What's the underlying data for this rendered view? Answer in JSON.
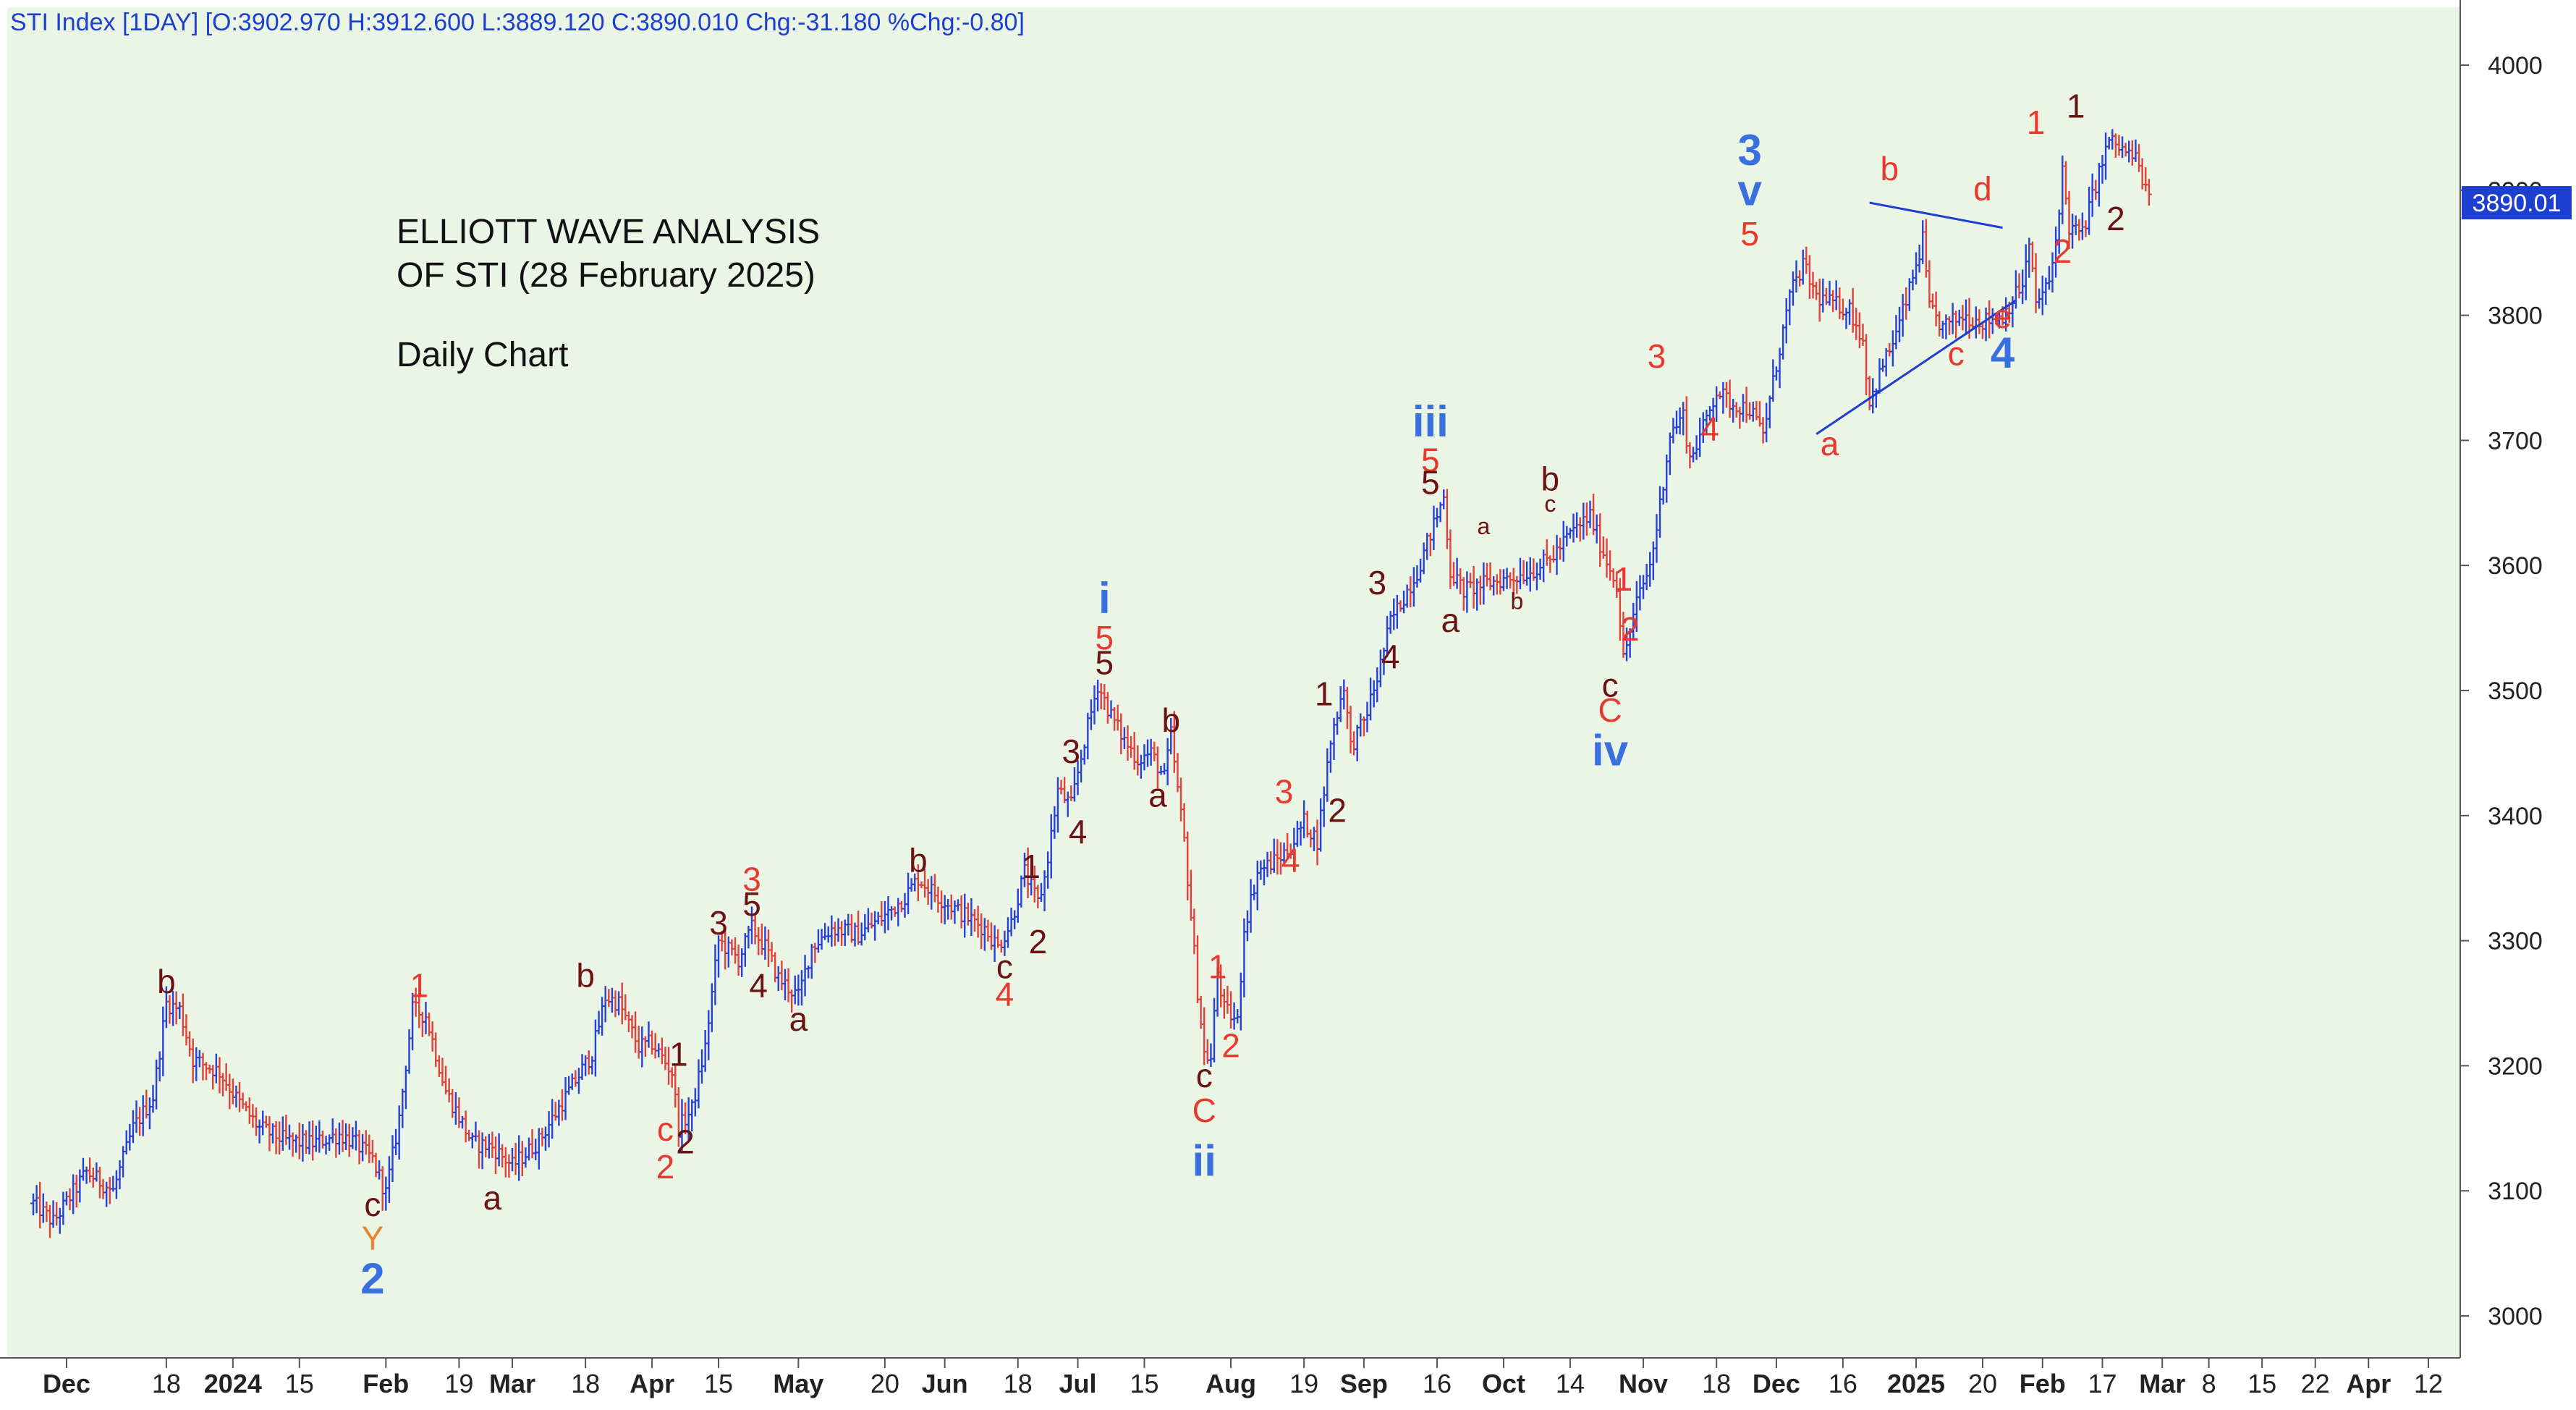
{
  "header": {
    "text": "STI Index [1DAY] [O:3902.970 H:3912.600 L:3889.120 C:3890.010 Chg:-31.180 %Chg:-0.80]"
  },
  "title": {
    "line1": "ELLIOTT WAVE ANALYSIS",
    "line2": "OF STI (28 February 2025)",
    "line3": "Daily Chart"
  },
  "colors": {
    "background": "#EAF5E6",
    "up_bar": "#2741D8",
    "down_bar": "#E0413A",
    "wave_red": "#E8392F",
    "wave_dark": "#6B1212",
    "wave_blue": "#3A6FE0",
    "wave_orange": "#E8832F",
    "price_tag": "#1C3FCF",
    "axis_text": "#222222",
    "trendline": "#1C3FCF"
  },
  "chart_data": {
    "type": "ohlc-bar",
    "symbol": "STI Index",
    "interval": "1DAY",
    "last_bar": {
      "open": 3902.97,
      "high": 3912.6,
      "low": 3889.12,
      "close": 3890.01,
      "change": -31.18,
      "pct_change": -0.8
    },
    "current_price_label": "3890.01",
    "current_price": 3890.01,
    "ylim": [
      2960,
      4040
    ],
    "y_ticks": [
      3000,
      3100,
      3200,
      3300,
      3400,
      3500,
      3600,
      3700,
      3800,
      3900,
      4000
    ],
    "x_ticks": [
      {
        "label": "Dec",
        "t": -15,
        "bold": true
      },
      {
        "label": "18",
        "t": 0,
        "bold": false
      },
      {
        "label": "2024",
        "t": 10,
        "bold": true
      },
      {
        "label": "15",
        "t": 20,
        "bold": false
      },
      {
        "label": "Feb",
        "t": 33,
        "bold": true
      },
      {
        "label": "19",
        "t": 44,
        "bold": false
      },
      {
        "label": "Mar",
        "t": 52,
        "bold": true
      },
      {
        "label": "18",
        "t": 63,
        "bold": false
      },
      {
        "label": "Apr",
        "t": 73,
        "bold": true
      },
      {
        "label": "15",
        "t": 83,
        "bold": false
      },
      {
        "label": "May",
        "t": 95,
        "bold": true
      },
      {
        "label": "20",
        "t": 108,
        "bold": false
      },
      {
        "label": "Jun",
        "t": 117,
        "bold": true
      },
      {
        "label": "18",
        "t": 128,
        "bold": false
      },
      {
        "label": "Jul",
        "t": 137,
        "bold": true
      },
      {
        "label": "15",
        "t": 147,
        "bold": false
      },
      {
        "label": "Aug",
        "t": 160,
        "bold": true
      },
      {
        "label": "19",
        "t": 171,
        "bold": false
      },
      {
        "label": "Sep",
        "t": 180,
        "bold": true
      },
      {
        "label": "16",
        "t": 191,
        "bold": false
      },
      {
        "label": "Oct",
        "t": 201,
        "bold": true
      },
      {
        "label": "14",
        "t": 211,
        "bold": false
      },
      {
        "label": "Nov",
        "t": 222,
        "bold": true
      },
      {
        "label": "18",
        "t": 233,
        "bold": false
      },
      {
        "label": "Dec",
        "t": 242,
        "bold": true
      },
      {
        "label": "16",
        "t": 252,
        "bold": false
      },
      {
        "label": "2025",
        "t": 263,
        "bold": true
      },
      {
        "label": "20",
        "t": 273,
        "bold": false
      },
      {
        "label": "Feb",
        "t": 282,
        "bold": true
      },
      {
        "label": "17",
        "t": 291,
        "bold": false
      },
      {
        "label": "Mar",
        "t": 300,
        "bold": true
      },
      {
        "label": "8",
        "t": 307,
        "bold": false
      },
      {
        "label": "15",
        "t": 315,
        "bold": false
      },
      {
        "label": "22",
        "t": 323,
        "bold": false
      },
      {
        "label": "Apr",
        "t": 331,
        "bold": true
      },
      {
        "label": "12",
        "t": 340,
        "bold": false
      }
    ],
    "price_path": [
      [
        -20,
        3090
      ],
      [
        -17,
        3075
      ],
      [
        -12,
        3115
      ],
      [
        -8,
        3100
      ],
      [
        -5,
        3150
      ],
      [
        -2,
        3175
      ],
      [
        0,
        3250
      ],
      [
        2,
        3245
      ],
      [
        4,
        3205
      ],
      [
        8,
        3195
      ],
      [
        11,
        3170
      ],
      [
        14,
        3150
      ],
      [
        18,
        3140
      ],
      [
        22,
        3138
      ],
      [
        26,
        3145
      ],
      [
        28,
        3140
      ],
      [
        31,
        3125
      ],
      [
        33,
        3098
      ],
      [
        35,
        3158
      ],
      [
        37,
        3245
      ],
      [
        39,
        3240
      ],
      [
        42,
        3180
      ],
      [
        46,
        3138
      ],
      [
        49,
        3135
      ],
      [
        52,
        3120
      ],
      [
        56,
        3140
      ],
      [
        60,
        3175
      ],
      [
        64,
        3210
      ],
      [
        66,
        3255
      ],
      [
        68,
        3250
      ],
      [
        71,
        3215
      ],
      [
        73,
        3218
      ],
      [
        76,
        3195
      ],
      [
        77,
        3150
      ],
      [
        79,
        3165
      ],
      [
        81,
        3215
      ],
      [
        83,
        3300
      ],
      [
        86,
        3285
      ],
      [
        88,
        3310
      ],
      [
        90,
        3295
      ],
      [
        92,
        3270
      ],
      [
        95,
        3255
      ],
      [
        97,
        3295
      ],
      [
        100,
        3310
      ],
      [
        104,
        3305
      ],
      [
        108,
        3320
      ],
      [
        111,
        3335
      ],
      [
        113,
        3350
      ],
      [
        116,
        3335
      ],
      [
        120,
        3320
      ],
      [
        123,
        3310
      ],
      [
        125,
        3295
      ],
      [
        127,
        3315
      ],
      [
        129,
        3355
      ],
      [
        131,
        3330
      ],
      [
        132,
        3350
      ],
      [
        134,
        3420
      ],
      [
        136,
        3408
      ],
      [
        138,
        3460
      ],
      [
        140,
        3505
      ],
      [
        142,
        3480
      ],
      [
        144,
        3460
      ],
      [
        146,
        3445
      ],
      [
        148,
        3450
      ],
      [
        150,
        3430
      ],
      [
        151,
        3465
      ],
      [
        152,
        3420
      ],
      [
        153,
        3380
      ],
      [
        155,
        3260
      ],
      [
        156,
        3210
      ],
      [
        157,
        3205
      ],
      [
        158,
        3275
      ],
      [
        159,
        3245
      ],
      [
        161,
        3235
      ],
      [
        162,
        3310
      ],
      [
        164,
        3355
      ],
      [
        167,
        3365
      ],
      [
        169,
        3375
      ],
      [
        171,
        3395
      ],
      [
        173,
        3380
      ],
      [
        175,
        3460
      ],
      [
        177,
        3505
      ],
      [
        178,
        3455
      ],
      [
        180,
        3475
      ],
      [
        182,
        3510
      ],
      [
        184,
        3555
      ],
      [
        186,
        3575
      ],
      [
        188,
        3595
      ],
      [
        190,
        3625
      ],
      [
        192,
        3655
      ],
      [
        193,
        3595
      ],
      [
        195,
        3580
      ],
      [
        198,
        3585
      ],
      [
        202,
        3590
      ],
      [
        205,
        3595
      ],
      [
        208,
        3605
      ],
      [
        211,
        3625
      ],
      [
        214,
        3640
      ],
      [
        216,
        3610
      ],
      [
        218,
        3585
      ],
      [
        219,
        3525
      ],
      [
        221,
        3570
      ],
      [
        223,
        3600
      ],
      [
        224,
        3630
      ],
      [
        226,
        3705
      ],
      [
        228,
        3720
      ],
      [
        229,
        3685
      ],
      [
        231,
        3710
      ],
      [
        233,
        3740
      ],
      [
        235,
        3730
      ],
      [
        238,
        3725
      ],
      [
        240,
        3705
      ],
      [
        242,
        3760
      ],
      [
        244,
        3815
      ],
      [
        246,
        3840
      ],
      [
        248,
        3815
      ],
      [
        250,
        3810
      ],
      [
        253,
        3805
      ],
      [
        255,
        3780
      ],
      [
        256,
        3730
      ],
      [
        258,
        3760
      ],
      [
        260,
        3785
      ],
      [
        262,
        3820
      ],
      [
        264,
        3860
      ],
      [
        265,
        3805
      ],
      [
        267,
        3790
      ],
      [
        270,
        3800
      ],
      [
        273,
        3795
      ],
      [
        276,
        3800
      ],
      [
        279,
        3825
      ],
      [
        280,
        3855
      ],
      [
        281,
        3810
      ],
      [
        283,
        3825
      ],
      [
        284,
        3860
      ],
      [
        285,
        3915
      ],
      [
        286,
        3870
      ],
      [
        288,
        3865
      ],
      [
        290,
        3905
      ],
      [
        292,
        3940
      ],
      [
        294,
        3932
      ],
      [
        296,
        3925
      ],
      [
        297,
        3910
      ],
      [
        298,
        3890
      ]
    ],
    "wave_labels": [
      {
        "text": "b",
        "t": 0,
        "p": 3258,
        "color": "dark",
        "size": "m"
      },
      {
        "text": "c",
        "t": 31,
        "p": 3080,
        "color": "dark",
        "size": "m"
      },
      {
        "text": "Y",
        "t": 31,
        "p": 3053,
        "color": "orange",
        "size": "m"
      },
      {
        "text": "2",
        "t": 31,
        "p": 3018,
        "color": "blue",
        "size": "l"
      },
      {
        "text": "1",
        "t": 38,
        "p": 3255,
        "color": "red",
        "size": "m"
      },
      {
        "text": "a",
        "t": 49,
        "p": 3085,
        "color": "dark",
        "size": "m"
      },
      {
        "text": "b",
        "t": 63,
        "p": 3263,
        "color": "dark",
        "size": "m"
      },
      {
        "text": "1",
        "t": 77,
        "p": 3200,
        "color": "dark",
        "size": "m"
      },
      {
        "text": "2",
        "t": 78,
        "p": 3130,
        "color": "dark",
        "size": "m"
      },
      {
        "text": "c",
        "t": 75,
        "p": 3140,
        "color": "red",
        "size": "m"
      },
      {
        "text": "2",
        "t": 75,
        "p": 3110,
        "color": "red",
        "size": "m"
      },
      {
        "text": "3",
        "t": 83,
        "p": 3305,
        "color": "dark",
        "size": "m"
      },
      {
        "text": "3",
        "t": 88,
        "p": 3340,
        "color": "red",
        "size": "m"
      },
      {
        "text": "5",
        "t": 88,
        "p": 3320,
        "color": "dark",
        "size": "m"
      },
      {
        "text": "4",
        "t": 89,
        "p": 3255,
        "color": "dark",
        "size": "m"
      },
      {
        "text": "a",
        "t": 95,
        "p": 3228,
        "color": "dark",
        "size": "m"
      },
      {
        "text": "b",
        "t": 113,
        "p": 3355,
        "color": "dark",
        "size": "m"
      },
      {
        "text": "c",
        "t": 126,
        "p": 3270,
        "color": "dark",
        "size": "m"
      },
      {
        "text": "4",
        "t": 126,
        "p": 3248,
        "color": "red",
        "size": "m"
      },
      {
        "text": "1",
        "t": 130,
        "p": 3350,
        "color": "dark",
        "size": "m"
      },
      {
        "text": "2",
        "t": 131,
        "p": 3290,
        "color": "dark",
        "size": "m"
      },
      {
        "text": "3",
        "t": 136,
        "p": 3442,
        "color": "dark",
        "size": "m"
      },
      {
        "text": "4",
        "t": 137,
        "p": 3378,
        "color": "dark",
        "size": "m"
      },
      {
        "text": "i",
        "t": 141,
        "p": 3562,
        "color": "blue",
        "size": "l"
      },
      {
        "text": "5",
        "t": 141,
        "p": 3533,
        "color": "red",
        "size": "m"
      },
      {
        "text": "5",
        "t": 141,
        "p": 3513,
        "color": "dark",
        "size": "m"
      },
      {
        "text": "b",
        "t": 151,
        "p": 3467,
        "color": "dark",
        "size": "m"
      },
      {
        "text": "a",
        "t": 149,
        "p": 3407,
        "color": "dark",
        "size": "m"
      },
      {
        "text": "c",
        "t": 156,
        "p": 3183,
        "color": "dark",
        "size": "m"
      },
      {
        "text": "C",
        "t": 156,
        "p": 3155,
        "color": "red",
        "size": "m"
      },
      {
        "text": "ii",
        "t": 156,
        "p": 3112,
        "color": "blue",
        "size": "l"
      },
      {
        "text": "1",
        "t": 158,
        "p": 3270,
        "color": "red",
        "size": "m"
      },
      {
        "text": "2",
        "t": 160,
        "p": 3207,
        "color": "red",
        "size": "m"
      },
      {
        "text": "3",
        "t": 168,
        "p": 3410,
        "color": "red",
        "size": "m"
      },
      {
        "text": "4",
        "t": 169,
        "p": 3355,
        "color": "red",
        "size": "m"
      },
      {
        "text": "1",
        "t": 174,
        "p": 3488,
        "color": "dark",
        "size": "m"
      },
      {
        "text": "2",
        "t": 176,
        "p": 3395,
        "color": "dark",
        "size": "m"
      },
      {
        "text": "3",
        "t": 182,
        "p": 3577,
        "color": "dark",
        "size": "m"
      },
      {
        "text": "4",
        "t": 184,
        "p": 3518,
        "color": "dark",
        "size": "m"
      },
      {
        "text": "iii",
        "t": 190,
        "p": 3703,
        "color": "blue",
        "size": "l"
      },
      {
        "text": "5",
        "t": 190,
        "p": 3675,
        "color": "red",
        "size": "m"
      },
      {
        "text": "5",
        "t": 190,
        "p": 3657,
        "color": "dark",
        "size": "m"
      },
      {
        "text": "a",
        "t": 193,
        "p": 3547,
        "color": "dark",
        "size": "m"
      },
      {
        "text": "a",
        "t": 198,
        "p": 3625,
        "color": "dark",
        "size": "s"
      },
      {
        "text": "b",
        "t": 203,
        "p": 3565,
        "color": "dark",
        "size": "s"
      },
      {
        "text": "b",
        "t": 208,
        "p": 3660,
        "color": "dark",
        "size": "m"
      },
      {
        "text": "c",
        "t": 208,
        "p": 3643,
        "color": "dark",
        "size": "s"
      },
      {
        "text": "1",
        "t": 219,
        "p": 3580,
        "color": "red",
        "size": "m"
      },
      {
        "text": "2",
        "t": 220,
        "p": 3540,
        "color": "red",
        "size": "m"
      },
      {
        "text": "c",
        "t": 217,
        "p": 3495,
        "color": "dark",
        "size": "m"
      },
      {
        "text": "C",
        "t": 217,
        "p": 3475,
        "color": "red",
        "size": "m"
      },
      {
        "text": "iv",
        "t": 217,
        "p": 3440,
        "color": "blue",
        "size": "l"
      },
      {
        "text": "3",
        "t": 224,
        "p": 3758,
        "color": "red",
        "size": "m"
      },
      {
        "text": "4",
        "t": 232,
        "p": 3700,
        "color": "red",
        "size": "m"
      },
      {
        "text": "3",
        "t": 238,
        "p": 3920,
        "color": "blue",
        "size": "l"
      },
      {
        "text": "v",
        "t": 238,
        "p": 3888,
        "color": "blue",
        "size": "l"
      },
      {
        "text": "5",
        "t": 238,
        "p": 3856,
        "color": "red",
        "size": "m"
      },
      {
        "text": "a",
        "t": 250,
        "p": 3688,
        "color": "red",
        "size": "m"
      },
      {
        "text": "b",
        "t": 259,
        "p": 3908,
        "color": "red",
        "size": "m"
      },
      {
        "text": "c",
        "t": 269,
        "p": 3760,
        "color": "red",
        "size": "m"
      },
      {
        "text": "d",
        "t": 273,
        "p": 3892,
        "color": "red",
        "size": "m"
      },
      {
        "text": "e",
        "t": 276,
        "p": 3790,
        "color": "red",
        "size": "m"
      },
      {
        "text": "4",
        "t": 276,
        "p": 3758,
        "color": "blue",
        "size": "l"
      },
      {
        "text": "1",
        "t": 281,
        "p": 3945,
        "color": "red",
        "size": "m"
      },
      {
        "text": "2",
        "t": 285,
        "p": 3842,
        "color": "red",
        "size": "m"
      },
      {
        "text": "1",
        "t": 287,
        "p": 3958,
        "color": "dark",
        "size": "m"
      },
      {
        "text": "2",
        "t": 293,
        "p": 3868,
        "color": "dark",
        "size": "m"
      }
    ],
    "trendlines": [
      {
        "t1": 248,
        "p1": 3705,
        "t2": 278,
        "p2": 3812
      },
      {
        "t1": 256,
        "p1": 3890,
        "t2": 276,
        "p2": 3870
      }
    ]
  }
}
